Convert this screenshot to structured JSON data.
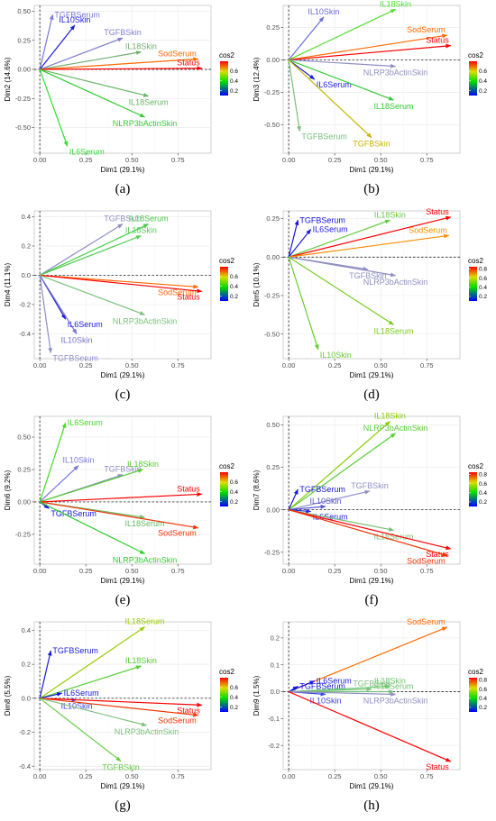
{
  "panel_ids": [
    "a",
    "b",
    "c",
    "d",
    "e",
    "f",
    "g",
    "h"
  ],
  "chart_data": [
    {
      "type": "scatter",
      "label": "(a)",
      "xlabel": "Dim1 (29.1%)",
      "ylabel": "Dim2 (14.6%)",
      "xlim": [
        -0.03,
        0.93
      ],
      "ylim": [
        -0.72,
        0.55
      ],
      "xticks": [
        0.0,
        0.25,
        0.5,
        0.75
      ],
      "yticks": [
        0.5,
        0.25,
        0.0,
        -0.25,
        -0.5
      ],
      "xtick_labels": [
        "0.00",
        "0.25",
        "0.50",
        "0.75"
      ],
      "ytick_labels": [
        "0.50",
        "0.25",
        "0.00",
        "-0.25",
        "-0.50"
      ],
      "legend": {
        "title": "cos2",
        "ticks": [
          0.6,
          0.4,
          0.2
        ],
        "tick_labels": [
          "0.6",
          "0.4",
          "0.2"
        ],
        "range": [
          0.1,
          0.8
        ]
      },
      "vectors": [
        {
          "name": "TGFBSerum",
          "x": 0.07,
          "y": 0.47,
          "cos2": 0.27,
          "color": "#7a77dd"
        },
        {
          "name": "IL10Skin",
          "x": 0.19,
          "y": 0.38,
          "cos2": 0.12,
          "color": "#1d1ddc"
        },
        {
          "name": "TGFBSkin",
          "x": 0.45,
          "y": 0.27,
          "cos2": 0.28,
          "color": "#8080d0"
        },
        {
          "name": "IL18Skin",
          "x": 0.55,
          "y": 0.15,
          "cos2": 0.38,
          "color": "#73b073"
        },
        {
          "name": "SodSerum",
          "x": 0.86,
          "y": 0.09,
          "cos2": 0.72,
          "color": "#ff6a00"
        },
        {
          "name": "Status",
          "x": 0.88,
          "y": 0.01,
          "cos2": 0.78,
          "color": "#ff0000"
        },
        {
          "name": "IL18Serum",
          "x": 0.59,
          "y": -0.23,
          "cos2": 0.4,
          "color": "#66b566"
        },
        {
          "name": "NLRP3bActinSkin",
          "x": 0.57,
          "y": -0.41,
          "cos2": 0.5,
          "color": "#33cc33"
        },
        {
          "name": "IL6Serum",
          "x": 0.15,
          "y": -0.66,
          "cos2": 0.45,
          "color": "#33dd33"
        }
      ]
    },
    {
      "type": "scatter",
      "label": "(b)",
      "xlabel": "Dim1 (29.1%)",
      "ylabel": "Dim3 (12.4%)",
      "xlim": [
        -0.03,
        0.93
      ],
      "ylim": [
        -0.72,
        0.42
      ],
      "xticks": [
        0.0,
        0.25,
        0.5,
        0.75
      ],
      "yticks": [
        0.25,
        0.0,
        -0.25,
        -0.5
      ],
      "xtick_labels": [
        "0.00",
        "0.25",
        "0.50",
        "0.75"
      ],
      "ytick_labels": [
        "0.25",
        "0.00",
        "-0.25",
        "-0.50"
      ],
      "legend": {
        "title": "cos2",
        "ticks": [
          0.6,
          0.4,
          0.2
        ],
        "tick_labels": [
          "0.6",
          "0.4",
          "0.2"
        ],
        "range": [
          0.1,
          0.8
        ]
      },
      "vectors": [
        {
          "name": "IL10Skin",
          "x": 0.19,
          "y": 0.33,
          "cos2": 0.2,
          "color": "#6c6cdc"
        },
        {
          "name": "IL18Skin",
          "x": 0.58,
          "y": 0.39,
          "cos2": 0.5,
          "color": "#55dd33"
        },
        {
          "name": "SodSerum",
          "x": 0.86,
          "y": 0.19,
          "cos2": 0.72,
          "color": "#ff6a00"
        },
        {
          "name": "Status",
          "x": 0.88,
          "y": 0.11,
          "cos2": 0.78,
          "color": "#ff0000"
        },
        {
          "name": "NLRP3bActinSkin",
          "x": 0.58,
          "y": -0.05,
          "cos2": 0.3,
          "color": "#8f8fc4"
        },
        {
          "name": "IL6Serum",
          "x": 0.14,
          "y": -0.15,
          "cos2": 0.12,
          "color": "#1c1ce0"
        },
        {
          "name": "IL18Serum",
          "x": 0.57,
          "y": -0.31,
          "cos2": 0.45,
          "color": "#33cc33"
        },
        {
          "name": "TGFBSerum",
          "x": 0.06,
          "y": -0.55,
          "cos2": 0.42,
          "color": "#7bbf7b"
        },
        {
          "name": "TGFBSkin",
          "x": 0.45,
          "y": -0.6,
          "cos2": 0.55,
          "color": "#c8b400"
        }
      ]
    },
    {
      "type": "scatter",
      "label": "(c)",
      "xlabel": "Dim1 (29.1%)",
      "ylabel": "Dim4 (11.1%)",
      "xlim": [
        -0.03,
        0.93
      ],
      "ylim": [
        -0.57,
        0.44
      ],
      "xticks": [
        0.0,
        0.25,
        0.5,
        0.75
      ],
      "yticks": [
        0.4,
        0.2,
        0.0,
        -0.2,
        -0.4
      ],
      "xtick_labels": [
        "0.00",
        "0.25",
        "0.50",
        "0.75"
      ],
      "ytick_labels": [
        "0.4",
        "0.2",
        "0.0",
        "-0.2",
        "-0.4"
      ],
      "legend": {
        "title": "cos2",
        "ticks": [
          0.6,
          0.4,
          0.2
        ],
        "tick_labels": [
          "0.6",
          "0.4",
          "0.2"
        ],
        "range": [
          0.1,
          0.8
        ]
      },
      "vectors": [
        {
          "name": "TGFBSkin",
          "x": 0.45,
          "y": 0.35,
          "cos2": 0.3,
          "color": "#8f8fc4"
        },
        {
          "name": "IL18Serum",
          "x": 0.59,
          "y": 0.35,
          "cos2": 0.45,
          "color": "#44cc44"
        },
        {
          "name": "IL18Skin",
          "x": 0.55,
          "y": 0.27,
          "cos2": 0.48,
          "color": "#55cc55"
        },
        {
          "name": "SodSerum",
          "x": 0.86,
          "y": -0.08,
          "cos2": 0.7,
          "color": "#ff6a00"
        },
        {
          "name": "Status",
          "x": 0.88,
          "y": -0.11,
          "cos2": 0.78,
          "color": "#ff0000"
        },
        {
          "name": "IL6Serum",
          "x": 0.14,
          "y": -0.3,
          "cos2": 0.12,
          "color": "#1c1ce0"
        },
        {
          "name": "NLRP3bActinSkin",
          "x": 0.57,
          "y": -0.27,
          "cos2": 0.42,
          "color": "#7bbf7b"
        },
        {
          "name": "IL10Skin",
          "x": 0.2,
          "y": -0.4,
          "cos2": 0.2,
          "color": "#7777cc"
        },
        {
          "name": "TGFBSerum",
          "x": 0.06,
          "y": -0.53,
          "cos2": 0.28,
          "color": "#8f8fc4"
        }
      ]
    },
    {
      "type": "scatter",
      "label": "(d)",
      "xlabel": "Dim1 (29.1%)",
      "ylabel": "Dim5 (10.1%)",
      "xlim": [
        -0.03,
        0.93
      ],
      "ylim": [
        -0.66,
        0.3
      ],
      "xticks": [
        0.0,
        0.25,
        0.5,
        0.75
      ],
      "yticks": [
        0.25,
        0.0,
        -0.25,
        -0.5
      ],
      "xtick_labels": [
        "0.00",
        "0.25",
        "0.50",
        "0.75"
      ],
      "ytick_labels": [
        "0.25",
        "0.00",
        "-0.25",
        "-0.50"
      ],
      "legend": {
        "title": "cos2",
        "ticks": [
          0.8,
          0.6,
          0.4,
          0.2
        ],
        "tick_labels": [
          "0.8",
          "0.6",
          "0.4",
          "0.2"
        ],
        "range": [
          0.1,
          0.85
        ]
      },
      "vectors": [
        {
          "name": "TGFBSerum",
          "x": 0.05,
          "y": 0.24,
          "cos2": 0.1,
          "color": "#1515dd"
        },
        {
          "name": "IL6Serum",
          "x": 0.12,
          "y": 0.18,
          "cos2": 0.12,
          "color": "#1c1ce0"
        },
        {
          "name": "IL18Skin",
          "x": 0.55,
          "y": 0.24,
          "cos2": 0.5,
          "color": "#66cc44"
        },
        {
          "name": "Status",
          "x": 0.88,
          "y": 0.26,
          "cos2": 0.82,
          "color": "#ff0000"
        },
        {
          "name": "SodSerum",
          "x": 0.87,
          "y": 0.14,
          "cos2": 0.72,
          "color": "#ff8c00"
        },
        {
          "name": "TGFBSkin",
          "x": 0.43,
          "y": -0.08,
          "cos2": 0.3,
          "color": "#8f8fc4"
        },
        {
          "name": "NLRP3bActinSkin",
          "x": 0.58,
          "y": -0.12,
          "cos2": 0.3,
          "color": "#8f8fc4"
        },
        {
          "name": "IL18Serum",
          "x": 0.57,
          "y": -0.44,
          "cos2": 0.55,
          "color": "#77cc22"
        },
        {
          "name": "IL10Skin",
          "x": 0.16,
          "y": -0.6,
          "cos2": 0.5,
          "color": "#66cc33"
        }
      ]
    },
    {
      "type": "scatter",
      "label": "(e)",
      "xlabel": "Dim1 (29.1%)",
      "ylabel": "Dim6 (9.2%)",
      "xlim": [
        -0.03,
        0.93
      ],
      "ylim": [
        -0.48,
        0.66
      ],
      "xticks": [
        0.0,
        0.25,
        0.5,
        0.75
      ],
      "yticks": [
        0.5,
        0.25,
        0.0,
        -0.25
      ],
      "xtick_labels": [
        "0.00",
        "0.25",
        "0.50",
        "0.75"
      ],
      "ytick_labels": [
        "0.50",
        "0.25",
        "0.00",
        "-0.25"
      ],
      "legend": {
        "title": "cos2",
        "ticks": [
          0.6,
          0.4,
          0.2
        ],
        "tick_labels": [
          "0.6",
          "0.4",
          "0.2"
        ],
        "range": [
          0.1,
          0.8
        ]
      },
      "vectors": [
        {
          "name": "IL6Serum",
          "x": 0.14,
          "y": 0.61,
          "cos2": 0.48,
          "color": "#44dd22"
        },
        {
          "name": "IL10Skin",
          "x": 0.21,
          "y": 0.28,
          "cos2": 0.22,
          "color": "#7777dd"
        },
        {
          "name": "TGFBSkin",
          "x": 0.45,
          "y": 0.21,
          "cos2": 0.3,
          "color": "#8f8fc4"
        },
        {
          "name": "IL18Skin",
          "x": 0.56,
          "y": 0.25,
          "cos2": 0.45,
          "color": "#55cc33"
        },
        {
          "name": "Status",
          "x": 0.88,
          "y": 0.06,
          "cos2": 0.78,
          "color": "#ff0000"
        },
        {
          "name": "TGFBSerum",
          "x": 0.05,
          "y": -0.05,
          "cos2": 0.1,
          "color": "#1515dd"
        },
        {
          "name": "IL18Serum",
          "x": 0.57,
          "y": -0.12,
          "cos2": 0.42,
          "color": "#66bb66"
        },
        {
          "name": "SodSerum",
          "x": 0.86,
          "y": -0.2,
          "cos2": 0.7,
          "color": "#ee3300"
        },
        {
          "name": "NLRP3bActinSkin",
          "x": 0.57,
          "y": -0.4,
          "cos2": 0.5,
          "color": "#33cc33"
        }
      ]
    },
    {
      "type": "scatter",
      "label": "(f)",
      "xlabel": "Dim1 (29.1%)",
      "ylabel": "Dim7 (8.6%)",
      "xlim": [
        -0.03,
        0.93
      ],
      "ylim": [
        -0.32,
        0.55
      ],
      "xticks": [
        0.0,
        0.25,
        0.5,
        0.75
      ],
      "yticks": [
        0.5,
        0.25,
        0.0,
        -0.25
      ],
      "xtick_labels": [
        "0.00",
        "0.25",
        "0.50",
        "0.75"
      ],
      "ytick_labels": [
        "0.50",
        "0.25",
        "0.00",
        "-0.25"
      ],
      "legend": {
        "title": "cos2",
        "ticks": [
          0.8,
          0.6,
          0.4,
          0.2
        ],
        "tick_labels": [
          "0.8",
          "0.6",
          "0.4",
          "0.2"
        ],
        "range": [
          0.1,
          0.85
        ]
      },
      "vectors": [
        {
          "name": "NLRP3bActinSkin",
          "x": 0.58,
          "y": 0.45,
          "cos2": 0.5,
          "color": "#55cc33"
        },
        {
          "name": "IL18Skin",
          "x": 0.55,
          "y": 0.52,
          "cos2": 0.55,
          "color": "#88cc00"
        },
        {
          "name": "TGFBSkin",
          "x": 0.44,
          "y": 0.11,
          "cos2": 0.3,
          "color": "#8f8fc4"
        },
        {
          "name": "TGFBSerum",
          "x": 0.05,
          "y": 0.12,
          "cos2": 0.1,
          "color": "#1515dd"
        },
        {
          "name": "IL10Skin",
          "x": 0.2,
          "y": 0.02,
          "cos2": 0.15,
          "color": "#5555cc"
        },
        {
          "name": "IL6Serum",
          "x": 0.12,
          "y": -0.01,
          "cos2": 0.1,
          "color": "#2222dd"
        },
        {
          "name": "IL18Serum",
          "x": 0.57,
          "y": -0.12,
          "cos2": 0.38,
          "color": "#77c077"
        },
        {
          "name": "Status",
          "x": 0.88,
          "y": -0.23,
          "cos2": 0.82,
          "color": "#ff0000"
        },
        {
          "name": "SodSerum",
          "x": 0.86,
          "y": -0.27,
          "cos2": 0.75,
          "color": "#ee3300"
        }
      ]
    },
    {
      "type": "scatter",
      "label": "(g)",
      "xlabel": "Dim1 (29.1%)",
      "ylabel": "Dim8 (5.5%)",
      "xlim": [
        -0.03,
        0.93
      ],
      "ylim": [
        -0.42,
        0.45
      ],
      "xticks": [
        0.0,
        0.25,
        0.5,
        0.75
      ],
      "yticks": [
        0.4,
        0.2,
        0.0,
        -0.2,
        -0.4
      ],
      "xtick_labels": [
        "0.00",
        "0.25",
        "0.50",
        "0.75"
      ],
      "ytick_labels": [
        "0.4",
        "0.2",
        "0.0",
        "-0.2",
        "-0.4"
      ],
      "legend": {
        "title": "cos2",
        "ticks": [
          0.6,
          0.4,
          0.2
        ],
        "tick_labels": [
          "0.6",
          "0.4",
          "0.2"
        ],
        "range": [
          0.1,
          0.8
        ]
      },
      "vectors": [
        {
          "name": "IL18Serum",
          "x": 0.57,
          "y": 0.42,
          "cos2": 0.55,
          "color": "#99cc00"
        },
        {
          "name": "TGFBSerum",
          "x": 0.06,
          "y": 0.28,
          "cos2": 0.12,
          "color": "#1c1ce0"
        },
        {
          "name": "IL18Skin",
          "x": 0.55,
          "y": 0.19,
          "cos2": 0.45,
          "color": "#55cc33"
        },
        {
          "name": "IL6Serum",
          "x": 0.12,
          "y": 0.03,
          "cos2": 0.1,
          "color": "#1515dd"
        },
        {
          "name": "IL10Skin",
          "x": 0.2,
          "y": -0.01,
          "cos2": 0.2,
          "color": "#4444dd"
        },
        {
          "name": "Status",
          "x": 0.88,
          "y": -0.04,
          "cos2": 0.78,
          "color": "#ff0000"
        },
        {
          "name": "SodSerum",
          "x": 0.86,
          "y": -0.1,
          "cos2": 0.7,
          "color": "#ee3300"
        },
        {
          "name": "NLRP3bActinSkin",
          "x": 0.58,
          "y": -0.16,
          "cos2": 0.4,
          "color": "#7bbf7b"
        },
        {
          "name": "TGFBSkin",
          "x": 0.44,
          "y": -0.37,
          "cos2": 0.45,
          "color": "#66cc44"
        }
      ]
    },
    {
      "type": "scatter",
      "label": "(h)",
      "xlabel": "Dim1 (29.1%)",
      "ylabel": "Dim9 (1.5%)",
      "xlim": [
        -0.03,
        0.93
      ],
      "ylim": [
        -0.29,
        0.26
      ],
      "xticks": [
        0.0,
        0.25,
        0.5,
        0.75
      ],
      "yticks": [
        0.2,
        0.1,
        0.0,
        -0.1,
        -0.2
      ],
      "xtick_labels": [
        "0.00",
        "0.25",
        "0.50",
        "0.75"
      ],
      "ytick_labels": [
        "0.2",
        "0.1",
        "0.0",
        "-0.1",
        "-0.2"
      ],
      "legend": {
        "title": "cos2",
        "ticks": [
          0.8,
          0.6,
          0.4,
          0.2
        ],
        "tick_labels": [
          "0.8",
          "0.6",
          "0.4",
          "0.2"
        ],
        "range": [
          0.1,
          0.85
        ]
      },
      "vectors": [
        {
          "name": "SodSerum",
          "x": 0.86,
          "y": 0.24,
          "cos2": 0.75,
          "color": "#ff6a00"
        },
        {
          "name": "IL6Serum",
          "x": 0.14,
          "y": 0.04,
          "cos2": 0.12,
          "color": "#1c1ce0"
        },
        {
          "name": "TGFBSerum",
          "x": 0.05,
          "y": 0.02,
          "cos2": 0.08,
          "color": "#1515dd"
        },
        {
          "name": "IL18Skin",
          "x": 0.55,
          "y": 0.02,
          "cos2": 0.4,
          "color": "#66cc66"
        },
        {
          "name": "TGFBSkin",
          "x": 0.45,
          "y": 0.01,
          "cos2": 0.3,
          "color": "#7bbf7b"
        },
        {
          "name": "IL18Serum",
          "x": 0.57,
          "y": 0.0,
          "cos2": 0.4,
          "color": "#77c077"
        },
        {
          "name": "IL10Skin",
          "x": 0.2,
          "y": -0.01,
          "cos2": 0.2,
          "color": "#4444dd"
        },
        {
          "name": "NLRP3bActinSkin",
          "x": 0.58,
          "y": -0.01,
          "cos2": 0.3,
          "color": "#8f8fc4"
        },
        {
          "name": "Status",
          "x": 0.88,
          "y": -0.26,
          "cos2": 0.82,
          "color": "#ff0000"
        }
      ]
    }
  ]
}
